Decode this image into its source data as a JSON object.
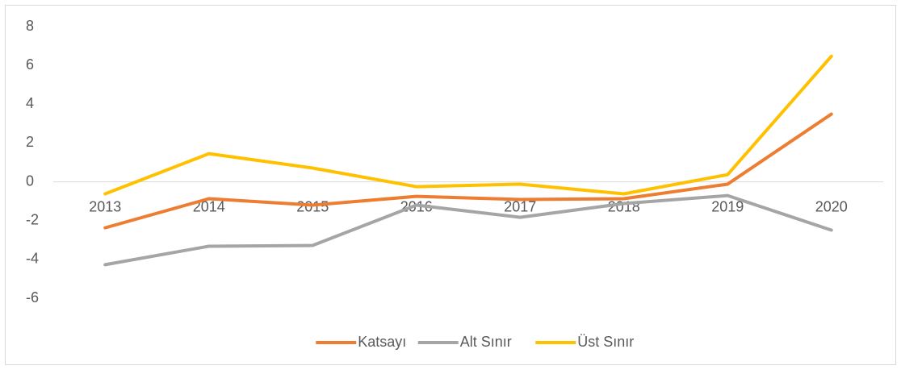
{
  "chart_data": {
    "type": "line",
    "categories": [
      "2013",
      "2014",
      "2015",
      "2016",
      "2017",
      "2018",
      "2019",
      "2020"
    ],
    "series": [
      {
        "name": "Katsayı",
        "color": "#ED7D31",
        "values": [
          -2.37,
          -0.87,
          -1.2,
          -0.75,
          -0.91,
          -0.87,
          -0.12,
          3.49
        ]
      },
      {
        "name": "Alt Sınır",
        "color": "#A5A5A5",
        "values": [
          -4.27,
          -3.32,
          -3.28,
          -1.2,
          -1.83,
          -1.12,
          -0.71,
          -2.49
        ]
      },
      {
        "name": "Üst Sınır",
        "color": "#FFC000",
        "values": [
          -0.62,
          1.45,
          0.71,
          -0.25,
          -0.12,
          -0.62,
          0.37,
          6.47
        ]
      }
    ],
    "ylim": [
      -6,
      8
    ],
    "yticks": [
      -6,
      -4,
      -2,
      0,
      2,
      4,
      6,
      8
    ],
    "legend": "bottom"
  }
}
